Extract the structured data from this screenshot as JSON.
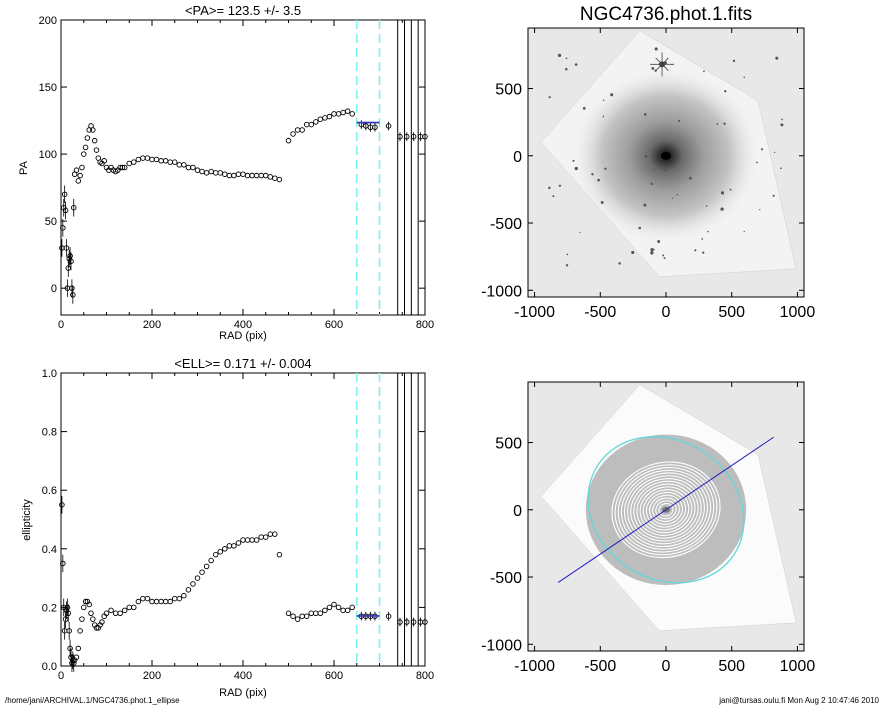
{
  "footer": {
    "left": "/home/jani/ARCHIVAL.1/NGC4736.phot.1_ellipse",
    "right": "jani@tursas.oulu.fi  Mon Aug  2 10:47:46 2010"
  },
  "colors": {
    "marker_vline": "#80f0f0",
    "fit_segment": "#3030c0",
    "ellipse": "#60d8d8",
    "pa_line": "#2020c0",
    "halo": "#8a8a8a",
    "background": "#ffffff"
  },
  "chart_data": [
    {
      "type": "scatter",
      "title": "<PA>= 123.5 +/-   3.5",
      "xlabel": "RAD (pix)",
      "ylabel": "PA",
      "xlim": [
        0,
        800
      ],
      "ylim": [
        -20,
        200
      ],
      "xticks": [
        0,
        200,
        400,
        600,
        800
      ],
      "yticks": [
        0,
        50,
        100,
        150,
        200
      ],
      "marker_lines_dashed": [
        650,
        700
      ],
      "marker_lines_solid": [
        740,
        755,
        770,
        785,
        800
      ],
      "fit_segment": {
        "x": [
          650,
          700
        ],
        "y": 123.5
      },
      "series": [
        {
          "x": [
            2,
            4,
            6,
            8,
            10,
            12,
            14,
            16,
            18,
            20,
            22,
            24,
            26,
            28,
            30,
            34,
            38,
            42,
            46,
            50,
            54,
            58,
            62,
            66,
            70,
            74,
            78,
            82,
            86,
            90,
            95,
            100,
            105,
            110,
            115,
            120,
            125,
            130,
            135,
            140,
            150,
            160,
            170,
            180,
            190,
            200,
            210,
            220,
            230,
            240,
            250,
            260,
            270,
            280,
            290,
            300,
            310,
            320,
            330,
            340,
            350,
            360,
            370,
            380,
            390,
            400,
            410,
            420,
            430,
            440,
            450,
            460,
            470,
            480,
            500,
            510,
            520,
            530,
            540,
            550,
            560,
            570,
            580,
            590,
            600,
            610,
            620,
            630,
            640,
            660,
            670,
            680,
            690,
            720,
            745,
            760,
            775,
            790,
            800
          ],
          "y": [
            30,
            45,
            60,
            70,
            58,
            30,
            0,
            15,
            22,
            24,
            20,
            0,
            -5,
            60,
            85,
            88,
            80,
            84,
            90,
            100,
            105,
            112,
            118,
            121,
            118,
            110,
            103,
            97,
            94,
            93,
            95,
            90,
            88,
            90,
            88,
            87,
            88,
            90,
            90,
            90,
            93,
            94,
            96,
            97,
            97,
            96,
            96,
            95,
            95,
            94,
            94,
            92,
            92,
            90,
            90,
            88,
            87,
            86,
            87,
            86,
            86,
            85,
            84,
            84,
            85,
            85,
            84,
            84,
            84,
            84,
            84,
            83,
            82,
            81,
            110,
            115,
            118,
            118,
            122,
            122,
            124,
            126,
            127,
            128,
            130,
            130,
            131,
            132,
            130,
            122,
            121,
            120,
            120,
            121,
            113,
            113,
            113,
            113,
            113
          ]
        }
      ]
    },
    {
      "type": "scatter",
      "title": "<ELL>= 0.171 +/-  0.004",
      "xlabel": "RAD (pix)",
      "ylabel": "ellipticity",
      "xlim": [
        0,
        800
      ],
      "ylim": [
        0.0,
        1.0
      ],
      "xticks": [
        0,
        200,
        400,
        600,
        800
      ],
      "yticks": [
        0.0,
        0.2,
        0.4,
        0.6,
        0.8,
        1.0
      ],
      "marker_lines_dashed": [
        650,
        700
      ],
      "marker_lines_solid": [
        740,
        755,
        770,
        785,
        800
      ],
      "fit_segment": {
        "x": [
          650,
          700
        ],
        "y": 0.171
      },
      "series": [
        {
          "x": [
            2,
            4,
            6,
            8,
            10,
            12,
            14,
            16,
            18,
            20,
            22,
            24,
            26,
            28,
            30,
            34,
            38,
            42,
            46,
            50,
            54,
            58,
            62,
            66,
            70,
            74,
            78,
            82,
            86,
            90,
            95,
            100,
            110,
            120,
            130,
            140,
            150,
            160,
            170,
            180,
            190,
            200,
            210,
            220,
            230,
            240,
            250,
            260,
            270,
            280,
            290,
            300,
            310,
            320,
            330,
            340,
            350,
            360,
            370,
            380,
            390,
            400,
            410,
            420,
            430,
            440,
            450,
            460,
            470,
            480,
            500,
            510,
            520,
            530,
            540,
            550,
            560,
            570,
            580,
            590,
            600,
            610,
            620,
            630,
            640,
            660,
            670,
            680,
            690,
            720,
            745,
            760,
            775,
            790,
            800
          ],
          "y": [
            0.55,
            0.35,
            0.2,
            0.12,
            0.16,
            0.19,
            0.2,
            0.18,
            0.12,
            0.06,
            0.03,
            0.01,
            0.02,
            0.01,
            0.02,
            0.03,
            0.06,
            0.12,
            0.16,
            0.2,
            0.22,
            0.22,
            0.21,
            0.18,
            0.16,
            0.14,
            0.13,
            0.13,
            0.14,
            0.15,
            0.17,
            0.18,
            0.19,
            0.18,
            0.18,
            0.19,
            0.2,
            0.2,
            0.22,
            0.23,
            0.23,
            0.22,
            0.22,
            0.22,
            0.22,
            0.22,
            0.23,
            0.23,
            0.24,
            0.26,
            0.28,
            0.3,
            0.32,
            0.34,
            0.36,
            0.38,
            0.39,
            0.4,
            0.41,
            0.41,
            0.42,
            0.43,
            0.43,
            0.43,
            0.43,
            0.44,
            0.44,
            0.45,
            0.45,
            0.38,
            0.18,
            0.17,
            0.16,
            0.17,
            0.17,
            0.18,
            0.18,
            0.18,
            0.19,
            0.2,
            0.21,
            0.2,
            0.19,
            0.19,
            0.2,
            0.17,
            0.17,
            0.17,
            0.17,
            0.17,
            0.15,
            0.15,
            0.15,
            0.15,
            0.15
          ]
        }
      ]
    },
    {
      "type": "image",
      "title": "NGC4736.phot.1.fits",
      "xlim": [
        -1050,
        1050
      ],
      "ylim": [
        -1050,
        950
      ],
      "xticks": [
        -1000,
        -500,
        0,
        500,
        1000
      ],
      "yticks": [
        -1000,
        -500,
        0,
        500
      ],
      "footprint_corners": [
        [
          -200,
          930
        ],
        [
          700,
          410
        ],
        [
          990,
          -840
        ],
        [
          -50,
          -900
        ],
        [
          -950,
          100
        ]
      ]
    },
    {
      "type": "image",
      "title": "",
      "xlim": [
        -1050,
        1050
      ],
      "ylim": [
        -1050,
        950
      ],
      "xticks": [
        -1000,
        -500,
        0,
        500,
        1000
      ],
      "yticks": [
        -1000,
        -500,
        0,
        500
      ],
      "footprint_corners": [
        [
          -200,
          930
        ],
        [
          700,
          410
        ],
        [
          990,
          -840
        ],
        [
          -50,
          -900
        ],
        [
          -950,
          100
        ]
      ],
      "ellipse": {
        "center": [
          0,
          0
        ],
        "semi_major": 620,
        "ellipticity": 0.171,
        "pa_deg": 123.5
      },
      "pa_line": {
        "x": [
          -820,
          820
        ],
        "y": [
          -540,
          540
        ]
      }
    }
  ]
}
